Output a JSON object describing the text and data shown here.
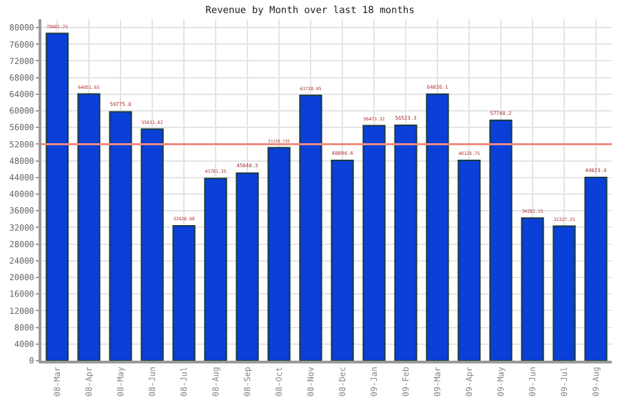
{
  "chart_data": {
    "type": "bar",
    "title": "Revenue by Month over last 18 months",
    "categories": [
      "08-Mar",
      "08-Apr",
      "08-May",
      "08-Jun",
      "08-Jul",
      "08-Aug",
      "08-Sep",
      "08-Oct",
      "08-Nov",
      "08-Dec",
      "09-Jan",
      "09-Feb",
      "09-Mar",
      "09-Apr",
      "09-May",
      "09-Jun",
      "09-Jul",
      "09-Aug"
    ],
    "values": [
      78601.25,
      64051.65,
      59775.8,
      55611.62,
      32420.98,
      43781.35,
      45040.3,
      51158.732,
      63728.95,
      48094.4,
      56473.32,
      56523.3,
      64026.1,
      48128.75,
      57748.2,
      34282.15,
      32327.25,
      44023.4
    ],
    "color": "#0a3fd8",
    "data_labels": true,
    "ylim": [
      0,
      82000
    ],
    "yticks": [
      0,
      4000,
      8000,
      12000,
      16000,
      20000,
      24000,
      28000,
      32000,
      36000,
      40000,
      44000,
      48000,
      52000,
      56000,
      60000,
      64000,
      68000,
      72000,
      76000,
      80000
    ],
    "ref_lines": [
      {
        "axis": "y",
        "value": 52000,
        "color": "#f08a80"
      }
    ],
    "grid": true
  }
}
